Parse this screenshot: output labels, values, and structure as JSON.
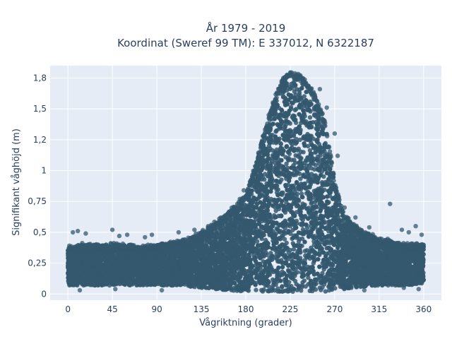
{
  "chart_data": {
    "type": "scatter",
    "title": "År 1979 - 2019",
    "subtitle": "Koordinat (Sweref 99 TM): E 337012, N 6322187",
    "xlabel": "Vågriktning (grader)",
    "ylabel": "Signifikant våghöjd (m)",
    "xlim": [
      -18,
      378
    ],
    "ylim": [
      -0.05,
      1.85
    ],
    "x_ticks": [
      0,
      45,
      90,
      135,
      180,
      225,
      270,
      315,
      360
    ],
    "x_tick_labels": [
      "0",
      "45",
      "90",
      "135",
      "180",
      "225",
      "270",
      "315",
      "360"
    ],
    "y_ticks": [
      0,
      0.25,
      0.5,
      0.75,
      1,
      1.25,
      1.5,
      1.75
    ],
    "y_tick_labels": [
      "0",
      "0,25",
      "0,5",
      "0,75",
      "1",
      "1,2",
      "1,5",
      "1,8"
    ],
    "grid": true,
    "marker_color": "#34586e",
    "plot_background": "#e5ecf6",
    "envelope": {
      "x": [
        0,
        15,
        30,
        45,
        60,
        75,
        90,
        105,
        120,
        135,
        150,
        165,
        180,
        190,
        200,
        210,
        220,
        225,
        230,
        240,
        250,
        260,
        265,
        270,
        280,
        290,
        300,
        315,
        330,
        345,
        360
      ],
      "y_min": [
        0.07,
        0.07,
        0.07,
        0.07,
        0.07,
        0.07,
        0.07,
        0.07,
        0.06,
        0.05,
        0.04,
        0.03,
        0.02,
        0.02,
        0.02,
        0.02,
        0.02,
        0.02,
        0.02,
        0.02,
        0.02,
        0.02,
        0.02,
        0.03,
        0.04,
        0.05,
        0.06,
        0.07,
        0.07,
        0.07,
        0.08
      ],
      "y_max": [
        0.38,
        0.4,
        0.4,
        0.4,
        0.4,
        0.38,
        0.4,
        0.42,
        0.44,
        0.5,
        0.58,
        0.68,
        0.8,
        1.05,
        1.35,
        1.62,
        1.77,
        1.8,
        1.79,
        1.74,
        1.62,
        1.4,
        1.18,
        0.9,
        0.64,
        0.56,
        0.5,
        0.45,
        0.42,
        0.4,
        0.4
      ]
    },
    "outliers": [
      {
        "x": 5,
        "y": 0.5
      },
      {
        "x": 10,
        "y": 0.51
      },
      {
        "x": 18,
        "y": 0.49
      },
      {
        "x": 45,
        "y": 0.52
      },
      {
        "x": 52,
        "y": 0.47
      },
      {
        "x": 60,
        "y": 0.48
      },
      {
        "x": 78,
        "y": 0.46
      },
      {
        "x": 85,
        "y": 0.48
      },
      {
        "x": 112,
        "y": 0.5
      },
      {
        "x": 128,
        "y": 0.52
      },
      {
        "x": 142,
        "y": 0.55
      },
      {
        "x": 158,
        "y": 0.62
      },
      {
        "x": 168,
        "y": 0.7
      },
      {
        "x": 174,
        "y": 0.77
      },
      {
        "x": 178,
        "y": 0.84
      },
      {
        "x": 188,
        "y": 0.96
      },
      {
        "x": 280,
        "y": 0.7
      },
      {
        "x": 291,
        "y": 0.62
      },
      {
        "x": 305,
        "y": 0.54
      },
      {
        "x": 326,
        "y": 0.73
      },
      {
        "x": 338,
        "y": 0.52
      },
      {
        "x": 345,
        "y": 0.5
      },
      {
        "x": 352,
        "y": 0.55
      },
      {
        "x": 358,
        "y": 0.48
      },
      {
        "x": 12,
        "y": 0.03
      },
      {
        "x": 48,
        "y": 0.04
      },
      {
        "x": 95,
        "y": 0.03
      },
      {
        "x": 300,
        "y": 0.03
      },
      {
        "x": 340,
        "y": 0.05
      },
      {
        "x": 355,
        "y": 0.04
      },
      {
        "x": 255,
        "y": 1.66
      },
      {
        "x": 262,
        "y": 1.51
      },
      {
        "x": 273,
        "y": 1.12
      },
      {
        "x": 218,
        "y": 1.75
      },
      {
        "x": 270,
        "y": 1.3
      }
    ]
  }
}
